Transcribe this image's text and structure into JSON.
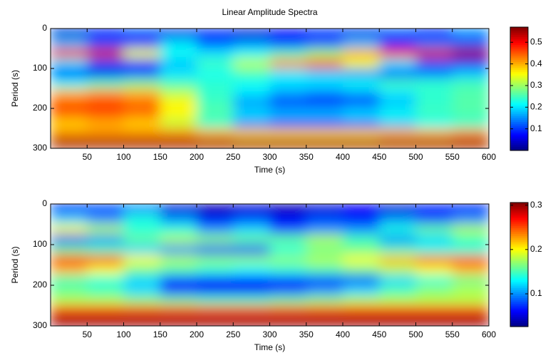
{
  "chart_data": [
    {
      "type": "heatmap",
      "title": "Linear Amplitude Spectra",
      "x_label": "Time (s)",
      "y_label": "Period (s)",
      "colormap": "jet",
      "x": [
        25,
        75,
        125,
        175,
        225,
        275,
        325,
        375,
        425,
        475,
        525,
        575
      ],
      "y": [
        12.5,
        37.5,
        62.5,
        87.5,
        112.5,
        137.5,
        162.5,
        187.5,
        212.5,
        237.5,
        262.5,
        287.5
      ],
      "z": [
        [
          0.05,
          0.08,
          0.12,
          0.06,
          0.1,
          0.05,
          0.08,
          0.1,
          0.06,
          0.12,
          0.08,
          0.15
        ],
        [
          0.18,
          0.12,
          0.1,
          0.2,
          0.12,
          0.15,
          0.1,
          0.12,
          0.18,
          0.1,
          0.14,
          0.12
        ],
        [
          0.5,
          0.52,
          0.35,
          0.22,
          0.2,
          0.22,
          0.25,
          0.3,
          0.4,
          0.48,
          0.52,
          0.55
        ],
        [
          0.2,
          0.12,
          0.1,
          0.18,
          0.25,
          0.32,
          0.42,
          0.45,
          0.35,
          0.2,
          0.12,
          0.1
        ],
        [
          0.08,
          0.06,
          0.12,
          0.2,
          0.22,
          0.25,
          0.2,
          0.18,
          0.15,
          0.12,
          0.14,
          0.18
        ],
        [
          0.22,
          0.25,
          0.28,
          0.25,
          0.24,
          0.22,
          0.2,
          0.2,
          0.22,
          0.25,
          0.24,
          0.25
        ],
        [
          0.4,
          0.42,
          0.4,
          0.32,
          0.24,
          0.2,
          0.16,
          0.14,
          0.16,
          0.2,
          0.24,
          0.26
        ],
        [
          0.45,
          0.46,
          0.44,
          0.36,
          0.25,
          0.15,
          0.08,
          0.07,
          0.1,
          0.18,
          0.24,
          0.26
        ],
        [
          0.45,
          0.46,
          0.44,
          0.36,
          0.26,
          0.2,
          0.18,
          0.18,
          0.2,
          0.22,
          0.25,
          0.26
        ],
        [
          0.38,
          0.4,
          0.38,
          0.32,
          0.24,
          0.14,
          0.1,
          0.1,
          0.12,
          0.18,
          0.22,
          0.24
        ],
        [
          0.42,
          0.42,
          0.42,
          0.42,
          0.4,
          0.38,
          0.38,
          0.38,
          0.38,
          0.4,
          0.4,
          0.42
        ],
        [
          0.55,
          0.55,
          0.55,
          0.55,
          0.55,
          0.55,
          0.55,
          0.55,
          0.55,
          0.55,
          0.55,
          0.55
        ]
      ],
      "xlim": [
        0,
        600
      ],
      "xticks": [
        50,
        100,
        150,
        200,
        250,
        300,
        350,
        400,
        450,
        500,
        550,
        600
      ],
      "ylim": [
        300,
        0
      ],
      "yticks": [
        0,
        100,
        200,
        300
      ],
      "clim": [
        0,
        0.57
      ],
      "cticks": [
        0.1,
        0.2,
        0.3,
        0.4,
        0.5
      ]
    },
    {
      "type": "heatmap",
      "x_label": "Time (s)",
      "y_label": "Period (s)",
      "colormap": "jet",
      "x": [
        25,
        75,
        125,
        175,
        225,
        275,
        325,
        375,
        425,
        475,
        525,
        575
      ],
      "y": [
        12.5,
        37.5,
        62.5,
        87.5,
        112.5,
        137.5,
        162.5,
        187.5,
        212.5,
        237.5,
        262.5,
        287.5
      ],
      "z": [
        [
          0.06,
          0.08,
          0.1,
          0.05,
          0.04,
          0.05,
          0.04,
          0.05,
          0.06,
          0.05,
          0.07,
          0.06
        ],
        [
          0.12,
          0.1,
          0.14,
          0.1,
          0.06,
          0.08,
          0.06,
          0.08,
          0.06,
          0.1,
          0.08,
          0.1
        ],
        [
          0.2,
          0.18,
          0.14,
          0.14,
          0.1,
          0.12,
          0.08,
          0.1,
          0.1,
          0.14,
          0.16,
          0.18
        ],
        [
          0.08,
          0.1,
          0.16,
          0.18,
          0.17,
          0.16,
          0.16,
          0.18,
          0.15,
          0.1,
          0.12,
          0.15
        ],
        [
          0.16,
          0.15,
          0.12,
          0.1,
          0.08,
          0.08,
          0.14,
          0.16,
          0.16,
          0.15,
          0.14,
          0.14
        ],
        [
          0.26,
          0.25,
          0.2,
          0.18,
          0.17,
          0.17,
          0.17,
          0.18,
          0.2,
          0.22,
          0.24,
          0.25
        ],
        [
          0.22,
          0.2,
          0.16,
          0.15,
          0.14,
          0.13,
          0.14,
          0.15,
          0.16,
          0.18,
          0.2,
          0.22
        ],
        [
          0.15,
          0.14,
          0.12,
          0.08,
          0.07,
          0.07,
          0.07,
          0.07,
          0.08,
          0.12,
          0.14,
          0.16
        ],
        [
          0.16,
          0.15,
          0.12,
          0.07,
          0.06,
          0.06,
          0.08,
          0.1,
          0.12,
          0.15,
          0.17,
          0.18
        ],
        [
          0.18,
          0.18,
          0.17,
          0.16,
          0.15,
          0.15,
          0.16,
          0.17,
          0.18,
          0.18,
          0.18,
          0.18
        ],
        [
          0.26,
          0.26,
          0.26,
          0.26,
          0.26,
          0.26,
          0.26,
          0.26,
          0.26,
          0.26,
          0.26,
          0.26
        ],
        [
          0.3,
          0.3,
          0.3,
          0.3,
          0.3,
          0.3,
          0.3,
          0.3,
          0.3,
          0.3,
          0.3,
          0.3
        ]
      ],
      "xlim": [
        0,
        600
      ],
      "xticks": [
        50,
        100,
        150,
        200,
        250,
        300,
        350,
        400,
        450,
        500,
        550,
        600
      ],
      "ylim": [
        300,
        0
      ],
      "yticks": [
        0,
        100,
        200,
        300
      ],
      "clim": [
        0.026,
        0.306
      ],
      "cticks": [
        0.1,
        0.2,
        0.3
      ]
    }
  ]
}
